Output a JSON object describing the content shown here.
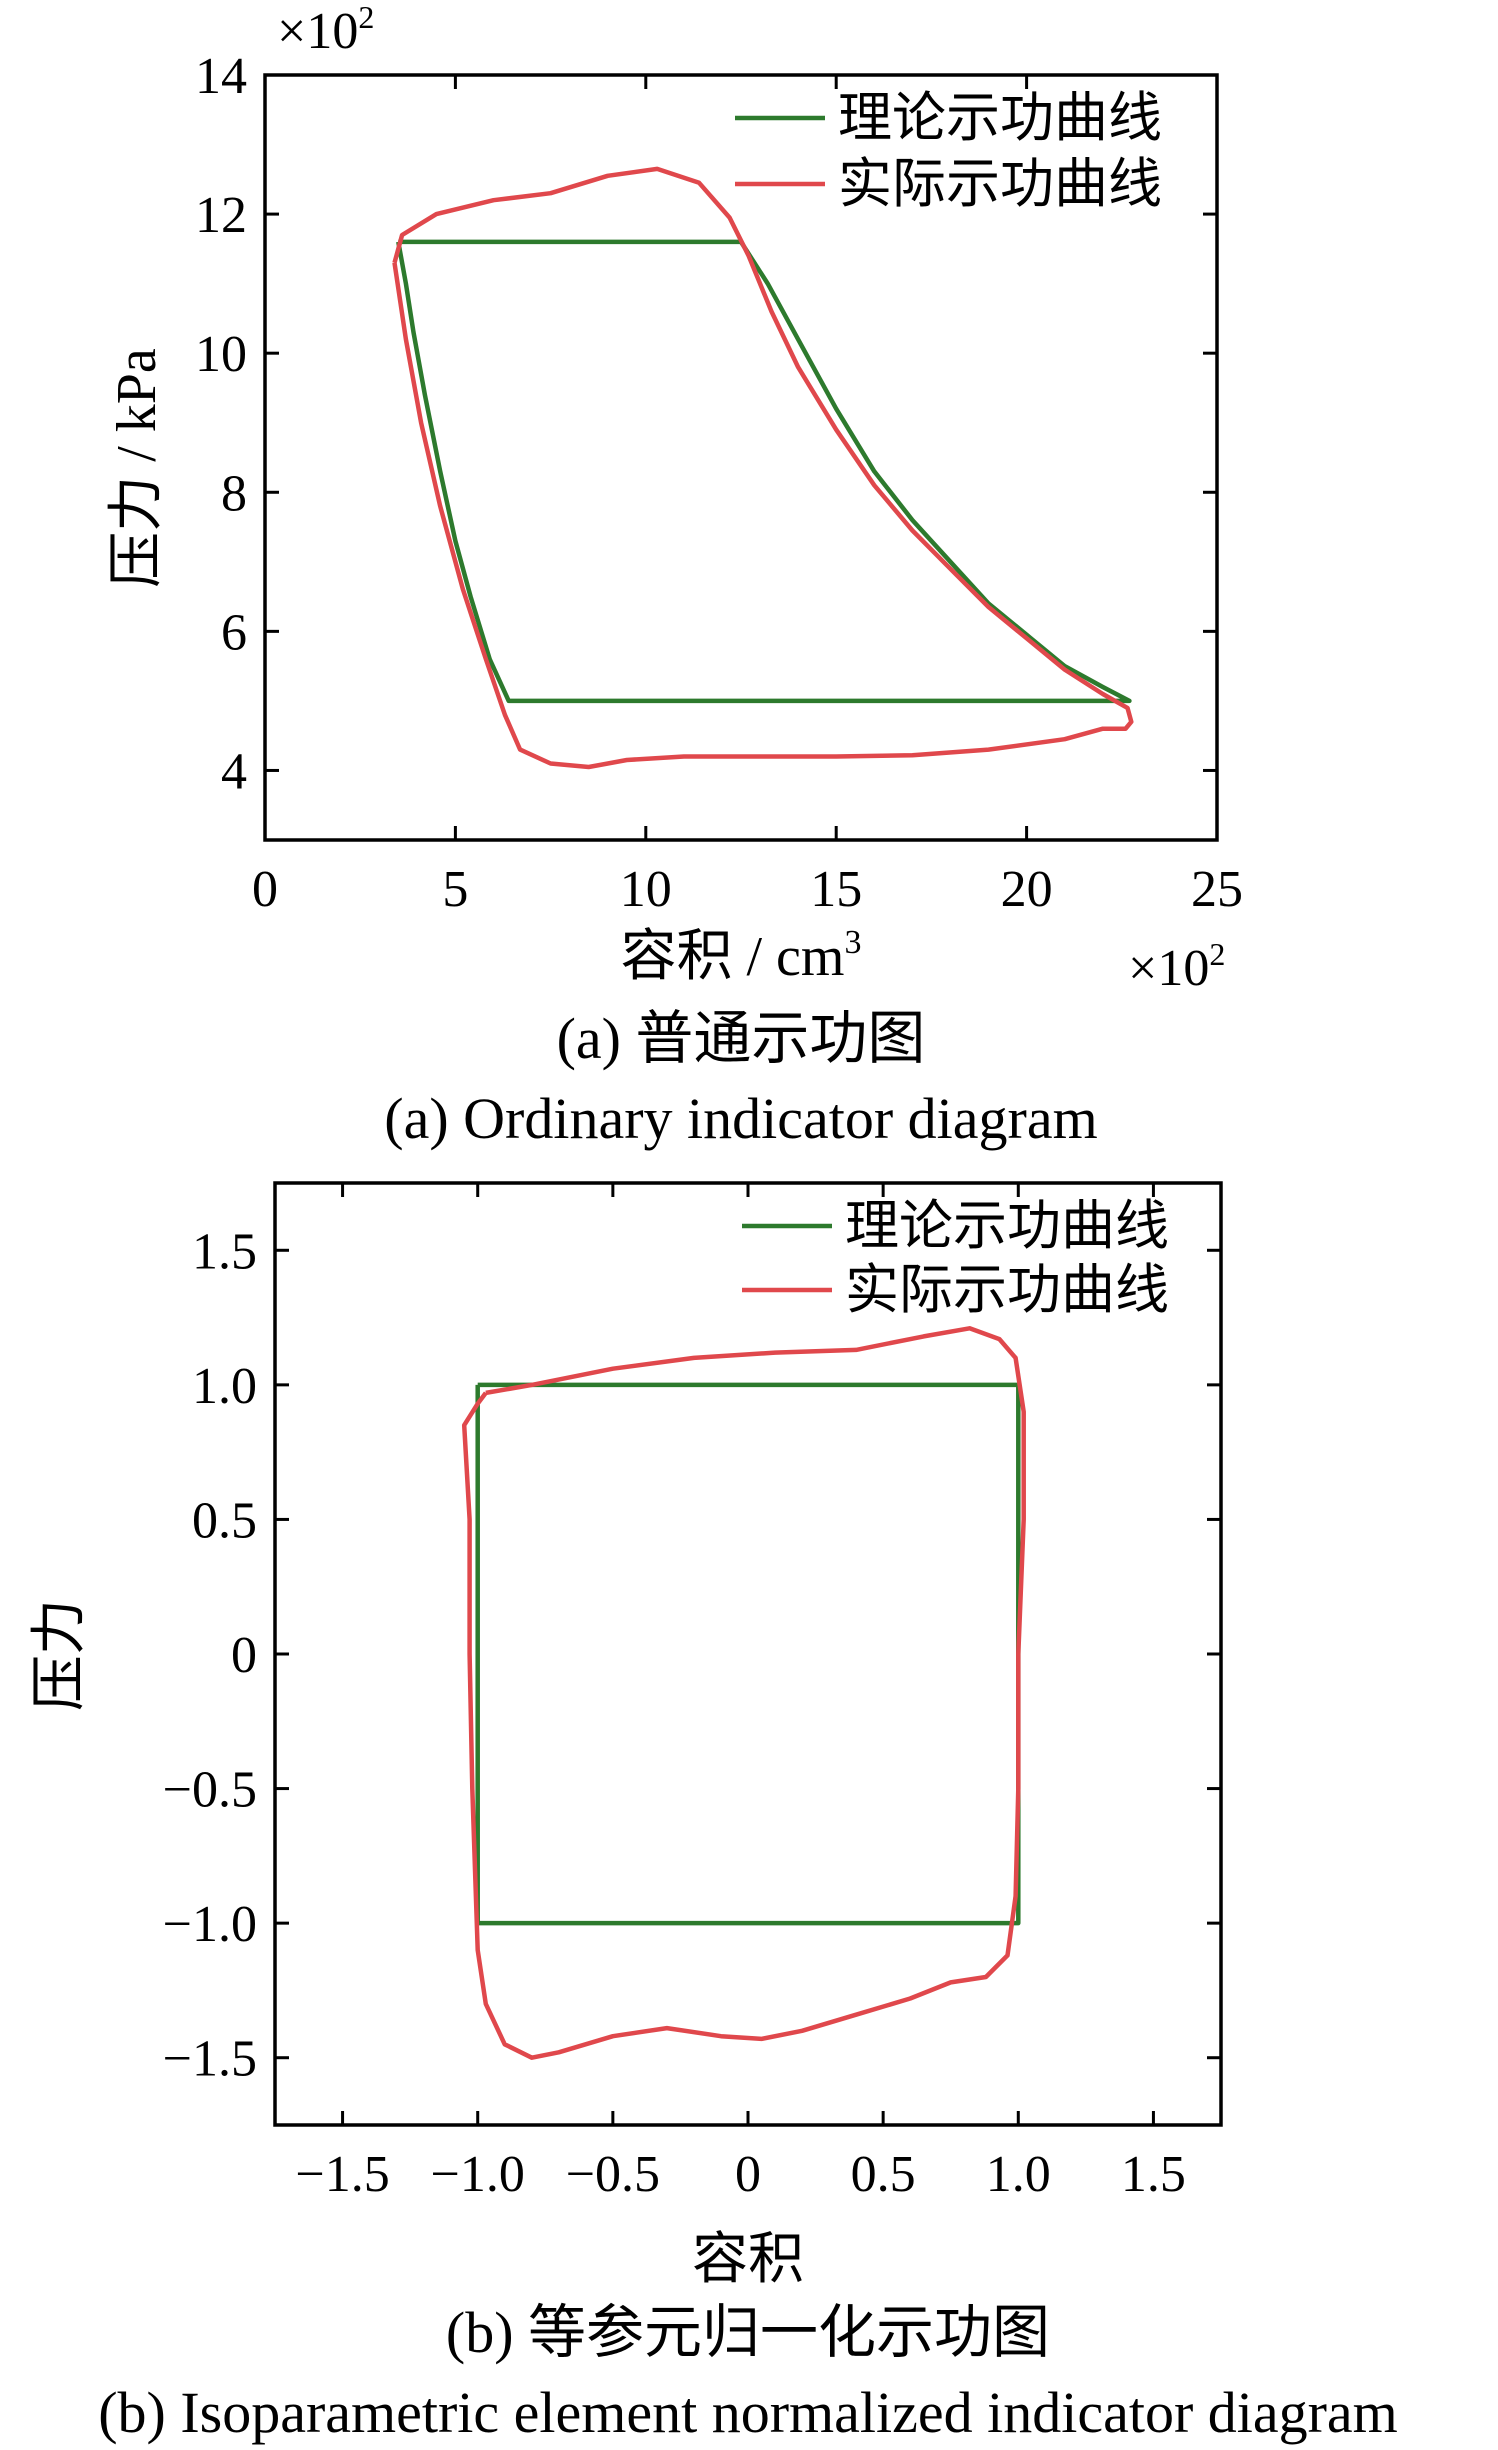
{
  "colors": {
    "theory": "#2d7a2d",
    "actual": "#e0484c",
    "axis": "#000000"
  },
  "chart_data": [
    {
      "type": "line",
      "x_multiplier_label": "×10",
      "x_multiplier_exp": "2",
      "y_multiplier_label": "×10",
      "y_multiplier_exp": "2",
      "xlabel_main": "容积 / cm",
      "xlabel_exp": "3",
      "ylabel": "压力 / kPa",
      "xlim": [
        0,
        25
      ],
      "ylim": [
        3,
        14
      ],
      "xticks": [
        0,
        5,
        10,
        15,
        20,
        25
      ],
      "xtick_labels": [
        "0",
        "5",
        "10",
        "15",
        "20",
        "25"
      ],
      "yticks": [
        4,
        6,
        8,
        10,
        12,
        14
      ],
      "ytick_labels": [
        "4",
        "6",
        "8",
        "10",
        "12",
        "14"
      ],
      "grid": false,
      "legend_position": "top-right",
      "series": [
        {
          "name": "理论示功曲线",
          "color": "#2d7a2d",
          "points": [
            [
              3.5,
              11.6
            ],
            [
              12.5,
              11.6
            ],
            [
              13.2,
              11.0
            ],
            [
              14.0,
              10.2
            ],
            [
              15.0,
              9.2
            ],
            [
              16.0,
              8.3
            ],
            [
              17.0,
              7.6
            ],
            [
              18.0,
              7.0
            ],
            [
              19.0,
              6.4
            ],
            [
              20.0,
              5.95
            ],
            [
              21.0,
              5.5
            ],
            [
              22.0,
              5.2
            ],
            [
              22.7,
              5.0
            ],
            [
              6.4,
              5.0
            ],
            [
              5.9,
              5.6
            ],
            [
              5.4,
              6.5
            ],
            [
              5.0,
              7.3
            ],
            [
              4.6,
              8.3
            ],
            [
              4.2,
              9.4
            ],
            [
              3.9,
              10.3
            ],
            [
              3.7,
              11.0
            ],
            [
              3.5,
              11.6
            ]
          ]
        },
        {
          "name": "实际示功曲线",
          "color": "#e0484c",
          "points": [
            [
              3.4,
              11.3
            ],
            [
              3.6,
              11.7
            ],
            [
              4.5,
              12.0
            ],
            [
              6.0,
              12.2
            ],
            [
              7.5,
              12.3
            ],
            [
              9.0,
              12.55
            ],
            [
              10.3,
              12.65
            ],
            [
              11.4,
              12.45
            ],
            [
              12.2,
              11.95
            ],
            [
              12.7,
              11.4
            ],
            [
              13.3,
              10.6
            ],
            [
              14.0,
              9.8
            ],
            [
              15.0,
              8.9
            ],
            [
              16.0,
              8.1
            ],
            [
              17.0,
              7.45
            ],
            [
              18.0,
              6.9
            ],
            [
              19.0,
              6.35
            ],
            [
              20.0,
              5.9
            ],
            [
              21.0,
              5.45
            ],
            [
              22.0,
              5.1
            ],
            [
              22.65,
              4.9
            ],
            [
              22.75,
              4.7
            ],
            [
              22.6,
              4.6
            ],
            [
              22.0,
              4.6
            ],
            [
              21.0,
              4.45
            ],
            [
              19.0,
              4.3
            ],
            [
              17.0,
              4.22
            ],
            [
              15.0,
              4.2
            ],
            [
              13.0,
              4.2
            ],
            [
              11.0,
              4.2
            ],
            [
              9.5,
              4.15
            ],
            [
              8.5,
              4.05
            ],
            [
              7.5,
              4.1
            ],
            [
              6.7,
              4.3
            ],
            [
              6.3,
              4.8
            ],
            [
              5.8,
              5.6
            ],
            [
              5.2,
              6.6
            ],
            [
              4.6,
              7.8
            ],
            [
              4.1,
              9.0
            ],
            [
              3.7,
              10.2
            ],
            [
              3.4,
              11.3
            ]
          ]
        }
      ],
      "caption_zh": "(a)  普通示功图",
      "caption_en": "(a)  Ordinary indicator diagram"
    },
    {
      "type": "line",
      "xlabel": "容积",
      "ylabel": "压力",
      "xlim": [
        -1.75,
        1.75
      ],
      "ylim": [
        -1.75,
        1.75
      ],
      "xticks": [
        -1.5,
        -1.0,
        -0.5,
        0,
        0.5,
        1.0,
        1.5
      ],
      "xtick_labels": [
        "−1.5",
        "−1.0",
        "−0.5",
        "0",
        "0.5",
        "1.0",
        "1.5"
      ],
      "yticks": [
        1.5,
        1.0,
        0.5,
        0,
        -0.5,
        -1.0,
        -1.5
      ],
      "ytick_labels": [
        "1.5",
        "1.0",
        "0.5",
        "0",
        "−0.5",
        "−1.0",
        "−1.5"
      ],
      "grid": false,
      "legend_position": "top-right",
      "series": [
        {
          "name": "理论示功曲线",
          "color": "#2d7a2d",
          "points": [
            [
              -1.0,
              1.0
            ],
            [
              1.0,
              1.0
            ],
            [
              1.0,
              -1.0
            ],
            [
              -1.0,
              -1.0
            ],
            [
              -1.0,
              1.0
            ]
          ]
        },
        {
          "name": "实际示功曲线",
          "color": "#e0484c",
          "points": [
            [
              -0.97,
              0.97
            ],
            [
              -0.8,
              1.0
            ],
            [
              -0.5,
              1.06
            ],
            [
              -0.2,
              1.1
            ],
            [
              0.1,
              1.12
            ],
            [
              0.4,
              1.13
            ],
            [
              0.65,
              1.18
            ],
            [
              0.82,
              1.21
            ],
            [
              0.93,
              1.17
            ],
            [
              0.99,
              1.1
            ],
            [
              1.02,
              0.9
            ],
            [
              1.02,
              0.5
            ],
            [
              1.0,
              0.0
            ],
            [
              1.0,
              -0.5
            ],
            [
              0.99,
              -0.9
            ],
            [
              0.96,
              -1.12
            ],
            [
              0.88,
              -1.2
            ],
            [
              0.75,
              -1.22
            ],
            [
              0.6,
              -1.28
            ],
            [
              0.4,
              -1.34
            ],
            [
              0.2,
              -1.4
            ],
            [
              0.05,
              -1.43
            ],
            [
              -0.1,
              -1.42
            ],
            [
              -0.3,
              -1.39
            ],
            [
              -0.5,
              -1.42
            ],
            [
              -0.7,
              -1.48
            ],
            [
              -0.8,
              -1.5
            ],
            [
              -0.9,
              -1.45
            ],
            [
              -0.97,
              -1.3
            ],
            [
              -1.0,
              -1.1
            ],
            [
              -1.02,
              -0.5
            ],
            [
              -1.03,
              0.0
            ],
            [
              -1.03,
              0.5
            ],
            [
              -1.05,
              0.85
            ],
            [
              -1.0,
              0.93
            ],
            [
              -0.97,
              0.97
            ]
          ]
        }
      ],
      "caption_zh": "(b)  等参元归一化示功图",
      "caption_en": "(b)  Isoparametric element normalized indicator diagram"
    }
  ]
}
